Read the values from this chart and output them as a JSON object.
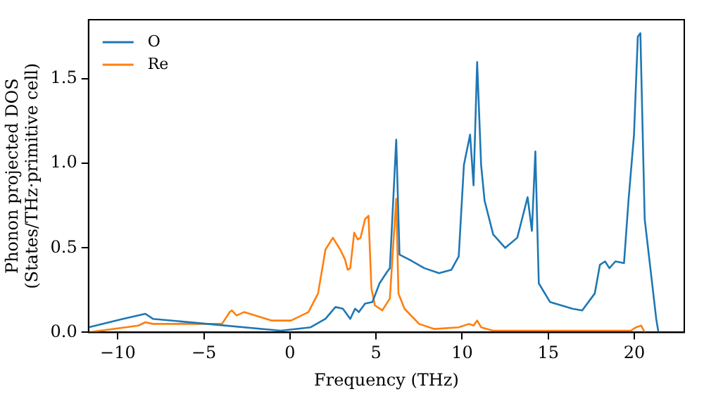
{
  "chart_data": {
    "type": "line",
    "xlabel": "Frequency (THz)",
    "ylabel": "Phonon projected DOS\n(States/THz·primitive cell)",
    "xlim": [
      -11.7,
      22.9
    ],
    "ylim": [
      0,
      1.85
    ],
    "xticks": [
      -10,
      -5,
      0,
      5,
      10,
      15,
      20
    ],
    "yticks": [
      {
        "value": 0,
        "label": "0.0"
      },
      {
        "value": 0.5,
        "label": "0.5"
      },
      {
        "value": 1,
        "label": "1.0"
      },
      {
        "value": 1.5,
        "label": "1.5"
      }
    ],
    "grid": false,
    "legend": "top left",
    "marker": "none",
    "line_style": "solid",
    "series": [
      {
        "name": "O",
        "color": "#1f77b4",
        "x": [
          -11.7,
          -9.7,
          -8.4,
          -7.96,
          -4.8,
          -0.54,
          1.2,
          2.06,
          2.64,
          3.07,
          3.5,
          3.78,
          4.0,
          4.36,
          4.79,
          5.2,
          5.65,
          5.8,
          6.17,
          6.36,
          6.94,
          7.8,
          8.66,
          9.37,
          9.8,
          10.1,
          10.46,
          10.66,
          10.87,
          11.1,
          11.3,
          11.8,
          12.5,
          13.2,
          13.8,
          14.05,
          14.25,
          14.45,
          15.1,
          16.4,
          16.97,
          17.7,
          18.0,
          18.3,
          18.55,
          18.9,
          19.4,
          19.66,
          19.98,
          20.2,
          20.35,
          20.6,
          20.93,
          21.27,
          21.4
        ],
        "values": [
          0.03,
          0.08,
          0.11,
          0.08,
          0.05,
          0.01,
          0.03,
          0.08,
          0.15,
          0.14,
          0.08,
          0.14,
          0.12,
          0.17,
          0.18,
          0.29,
          0.36,
          0.38,
          1.14,
          0.46,
          0.43,
          0.38,
          0.35,
          0.37,
          0.45,
          0.99,
          1.17,
          0.87,
          1.6,
          0.99,
          0.78,
          0.58,
          0.5,
          0.56,
          0.8,
          0.6,
          1.07,
          0.29,
          0.18,
          0.14,
          0.13,
          0.23,
          0.4,
          0.42,
          0.38,
          0.42,
          0.41,
          0.78,
          1.17,
          1.75,
          1.77,
          0.67,
          0.38,
          0.08,
          0
        ]
      },
      {
        "name": "Re",
        "color": "#ff7f0e",
        "x": [
          -11.7,
          -8.8,
          -8.4,
          -7.96,
          -3.95,
          -3.5,
          -3.38,
          -3.1,
          -2.67,
          -1.08,
          0.06,
          1.07,
          1.63,
          2.06,
          2.49,
          2.92,
          3.2,
          3.35,
          3.5,
          3.73,
          3.93,
          4.1,
          4.36,
          4.56,
          4.73,
          4.93,
          5.36,
          5.8,
          6.0,
          6.17,
          6.3,
          6.65,
          7.5,
          8.37,
          9.8,
          10.4,
          10.66,
          10.87,
          11.1,
          11.8,
          19.8,
          20.1,
          20.4,
          20.6
        ],
        "values": [
          0,
          0.04,
          0.06,
          0.05,
          0.05,
          0.12,
          0.13,
          0.1,
          0.12,
          0.07,
          0.07,
          0.12,
          0.23,
          0.49,
          0.56,
          0.49,
          0.43,
          0.37,
          0.38,
          0.59,
          0.55,
          0.56,
          0.67,
          0.69,
          0.26,
          0.16,
          0.13,
          0.2,
          0.52,
          0.79,
          0.23,
          0.14,
          0.05,
          0.02,
          0.03,
          0.05,
          0.04,
          0.07,
          0.03,
          0.01,
          0.01,
          0.03,
          0.04,
          0
        ]
      }
    ]
  }
}
